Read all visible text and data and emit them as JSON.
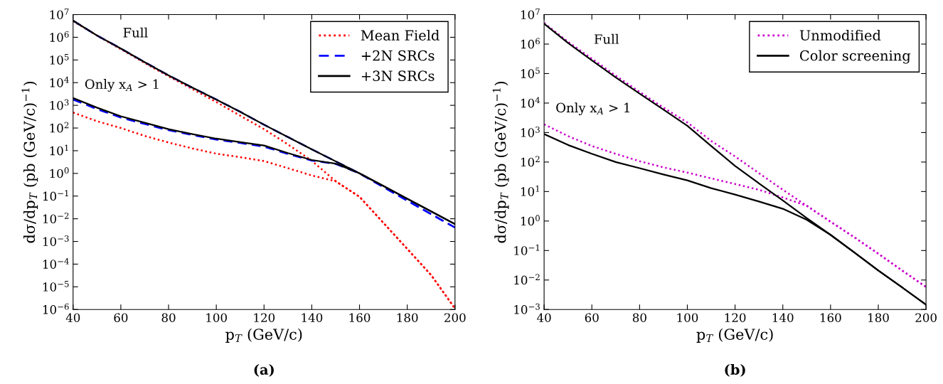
{
  "chart_data": [
    {
      "type": "line",
      "x": [
        40,
        50,
        60,
        70,
        80,
        90,
        100,
        110,
        120,
        130,
        140,
        150,
        160,
        170,
        180,
        190,
        200
      ],
      "xlabel": "p$_{T}$ (GeV/c)",
      "ylabel": "dσ/dp$_{T}$ (pb (GeV/c)$^{−1}$)",
      "log": "y",
      "xlim": [
        40,
        200
      ],
      "xticks": [
        40,
        60,
        80,
        100,
        120,
        140,
        160,
        180,
        200
      ],
      "ylim": [
        1e-06,
        10000000.0
      ],
      "yticks": [
        {
          "value": 1e-06,
          "label": "10$^{−6}$"
        },
        {
          "value": 1e-05,
          "label": "10$^{−5}$"
        },
        {
          "value": 0.0001,
          "label": "10$^{−4}$"
        },
        {
          "value": 0.001,
          "label": "10$^{−3}$"
        },
        {
          "value": 0.01,
          "label": "10$^{−2}$"
        },
        {
          "value": 0.1,
          "label": "10$^{−1}$"
        },
        {
          "value": 1,
          "label": "10$^{0}$"
        },
        {
          "value": 10,
          "label": "10$^{1}$"
        },
        {
          "value": 100,
          "label": "10$^{2}$"
        },
        {
          "value": 1000,
          "label": "10$^{3}$"
        },
        {
          "value": 10000,
          "label": "10$^{4}$"
        },
        {
          "value": 100000,
          "label": "10$^{5}$"
        },
        {
          "value": 1000000,
          "label": "10$^{6}$"
        },
        {
          "value": 10000000,
          "label": "10$^{7}$"
        }
      ],
      "grid": false,
      "legend": "top right",
      "marker": "none",
      "annotations": [
        "Full",
        "Only x$_{A}$ > 1",
        "(a)"
      ],
      "series": [
        {
          "name": "Mean Field",
          "color": "#ff0000",
          "line_style": "dotted",
          "values": [
            5200000,
            1200000,
            300000,
            74000,
            19000,
            5200,
            1400,
            350,
            89,
            19,
            3.6,
            0.45,
            0.093,
            0.0066,
            0.00047,
            3.3e-05,
            1.1e-06
          ]
        },
        {
          "color": "#ff0000",
          "line_style": "dotted",
          "values": [
            480,
            200,
            100,
            45,
            23,
            12.6,
            7.4,
            5.2,
            3.5,
            1.7,
            0.81,
            0.45,
            0.093,
            0.0066,
            0.00047,
            3.3e-05,
            1.1e-06
          ]
        },
        {
          "name": "+2N SRCs",
          "color": "#0000ff",
          "line_style": "dashed",
          "values": [
            5400000,
            1200000,
            320000,
            80000,
            21000,
            6000,
            1800,
            520,
            140,
            40,
            11.5,
            3.4,
            1.0,
            0.25,
            0.063,
            0.016,
            0.0041
          ]
        },
        {
          "color": "#0000ff",
          "line_style": "dashed",
          "values": [
            1800,
            680,
            290,
            150,
            80,
            49,
            31,
            22,
            15,
            7.2,
            3.7,
            2.6,
            1.0,
            0.25,
            0.063,
            0.016,
            0.0041
          ]
        },
        {
          "name": "+3N SRCs",
          "color": "#000000",
          "line_style": "solid",
          "values": [
            5400000,
            1200000,
            320000,
            80000,
            21000,
            6000,
            1800,
            520,
            140,
            40,
            11.5,
            3.4,
            1.0,
            0.28,
            0.076,
            0.021,
            0.0058
          ]
        },
        {
          "color": "#000000",
          "line_style": "solid",
          "values": [
            2100,
            790,
            330,
            170,
            89,
            54,
            34,
            24,
            17,
            7.9,
            3.9,
            2.7,
            1.0,
            0.28,
            0.076,
            0.021,
            0.0058
          ]
        }
      ]
    },
    {
      "type": "line",
      "x": [
        40,
        50,
        60,
        70,
        80,
        90,
        100,
        110,
        120,
        130,
        140,
        150,
        160,
        170,
        180,
        190,
        200
      ],
      "xlabel": "p$_{T}$ (GeV/c)",
      "ylabel": "dσ/dp$_{T}$ (pb (GeV/c)$^{−1}$)",
      "log": "y",
      "xlim": [
        40,
        200
      ],
      "xticks": [
        40,
        60,
        80,
        100,
        120,
        140,
        160,
        180,
        200
      ],
      "ylim": [
        0.001,
        10000000.0
      ],
      "yticks": [
        {
          "value": 0.001,
          "label": "10$^{−3}$"
        },
        {
          "value": 0.01,
          "label": "10$^{−2}$"
        },
        {
          "value": 0.1,
          "label": "10$^{−1}$"
        },
        {
          "value": 1,
          "label": "10$^{0}$"
        },
        {
          "value": 10,
          "label": "10$^{1}$"
        },
        {
          "value": 100,
          "label": "10$^{2}$"
        },
        {
          "value": 1000,
          "label": "10$^{3}$"
        },
        {
          "value": 10000,
          "label": "10$^{4}$"
        },
        {
          "value": 100000,
          "label": "10$^{5}$"
        },
        {
          "value": 1000000,
          "label": "10$^{6}$"
        },
        {
          "value": 10000000,
          "label": "10$^{7}$"
        }
      ],
      "grid": false,
      "legend": "top right",
      "marker": "none",
      "annotations": [
        "Full",
        "Only x$_{A}$ > 1",
        "(b)"
      ],
      "series": [
        {
          "name": "Unmodified",
          "color": "#cc00cc",
          "line_style": "dotted",
          "values": [
            5200000,
            1200000,
            320000,
            85000,
            24000,
            7000,
            2200,
            520,
            155,
            42,
            11.5,
            3.3,
            0.95,
            0.28,
            0.078,
            0.021,
            0.0058
          ]
        },
        {
          "color": "#cc00cc",
          "line_style": "dotted",
          "values": [
            1900,
            760,
            350,
            190,
            107,
            66,
            44,
            28,
            18,
            11.5,
            6.3,
            3.3,
            0.95,
            0.28,
            0.078,
            0.021,
            0.0058
          ]
        },
        {
          "name": "Color screening",
          "color": "#000000",
          "line_style": "solid",
          "values": [
            4900000,
            1100000,
            280000,
            74000,
            21000,
            6000,
            1700,
            350,
            74,
            19,
            5.0,
            1.26,
            0.34,
            0.085,
            0.021,
            0.0056,
            0.00145
          ]
        },
        {
          "color": "#000000",
          "line_style": "solid",
          "values": [
            890,
            380,
            190,
            100,
            62,
            38,
            24,
            13,
            7.9,
            4.6,
            2.6,
            1.1,
            0.34,
            0.085,
            0.021,
            0.0056,
            0.00145
          ]
        }
      ]
    }
  ]
}
